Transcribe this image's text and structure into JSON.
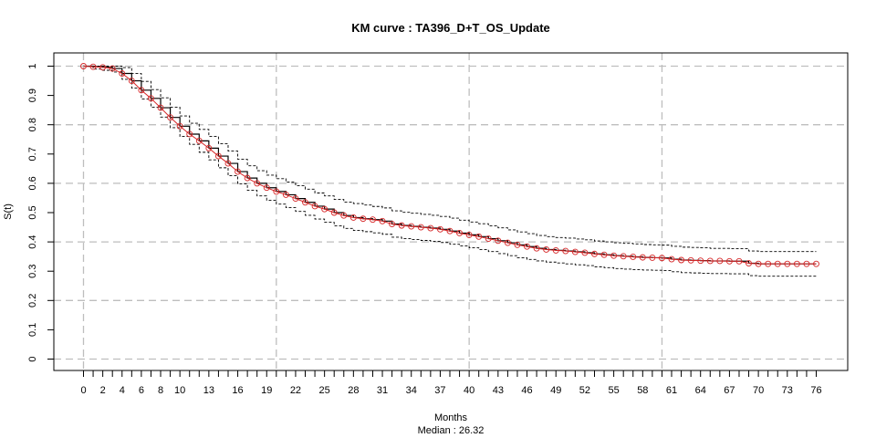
{
  "chart_data": {
    "type": "line",
    "title": "KM curve : TA396_D+T_OS_Update",
    "xlabel": "Months",
    "xlabel_sub": "Median : 26.32",
    "ylabel": "S(t)",
    "xlim": [
      0,
      79
    ],
    "ylim": [
      -0.04,
      1.04
    ],
    "x_ticks": [
      0,
      1,
      2,
      3,
      4,
      5,
      6,
      7,
      8,
      9,
      10,
      11,
      12,
      13,
      14,
      15,
      16,
      17,
      18,
      19,
      20,
      21,
      22,
      23,
      24,
      25,
      26,
      27,
      28,
      29,
      30,
      31,
      32,
      33,
      34,
      35,
      36,
      37,
      38,
      39,
      40,
      41,
      42,
      43,
      44,
      45,
      46,
      47,
      48,
      49,
      50,
      51,
      52,
      53,
      54,
      55,
      56,
      57,
      58,
      59,
      60,
      61,
      62,
      63,
      64,
      65,
      66,
      67,
      68,
      69,
      70,
      71,
      72,
      73,
      74,
      75,
      76
    ],
    "x_tick_labels": [
      "0",
      "2",
      "4",
      "6",
      "8",
      "10",
      "13",
      "16",
      "19",
      "22",
      "25",
      "28",
      "31",
      "34",
      "37",
      "40",
      "43",
      "46",
      "49",
      "52",
      "55",
      "58",
      "61",
      "64",
      "67",
      "70",
      "73",
      "76"
    ],
    "y_ticks": [
      0,
      0.1,
      0.2,
      0.3,
      0.4,
      0.5,
      0.6,
      0.7,
      0.8,
      0.9,
      1
    ],
    "y_tick_labels": [
      "0",
      "0.1",
      "0.2",
      "0.3",
      "0.4",
      "0.5",
      "0.6",
      "0.7",
      "0.8",
      "0.9",
      "1"
    ],
    "grid_x": [
      0,
      20,
      40,
      60
    ],
    "grid_y": [
      0,
      0.2,
      0.4,
      0.6,
      0.8,
      1
    ],
    "grid": true,
    "colors": {
      "estimate": "#000000",
      "ci": "#000000",
      "points": "#d62728",
      "grid": "#bebebe"
    },
    "series": [
      {
        "role": "estimate",
        "x": [
          0,
          1,
          2,
          3,
          4,
          5,
          6,
          7,
          8,
          9,
          10,
          11,
          12,
          13,
          14,
          15,
          16,
          17,
          18,
          19,
          20,
          21,
          22,
          23,
          24,
          25,
          26,
          27,
          28,
          29,
          30,
          31,
          32,
          33,
          34,
          35,
          36,
          37,
          38,
          39,
          40,
          41,
          42,
          43,
          44,
          45,
          46,
          47,
          48,
          49,
          50,
          51,
          52,
          53,
          54,
          55,
          56,
          57,
          58,
          59,
          60,
          61,
          62,
          63,
          64,
          65,
          66,
          67,
          68,
          69,
          70,
          71,
          72,
          73,
          74,
          75,
          76
        ],
        "y": [
          1.0,
          0.998,
          0.996,
          0.992,
          0.975,
          0.95,
          0.918,
          0.89,
          0.858,
          0.825,
          0.795,
          0.768,
          0.745,
          0.72,
          0.693,
          0.668,
          0.64,
          0.618,
          0.6,
          0.585,
          0.572,
          0.561,
          0.548,
          0.535,
          0.522,
          0.512,
          0.5,
          0.49,
          0.483,
          0.479,
          0.476,
          0.471,
          0.461,
          0.456,
          0.453,
          0.45,
          0.447,
          0.443,
          0.437,
          0.43,
          0.424,
          0.418,
          0.411,
          0.404,
          0.397,
          0.39,
          0.384,
          0.378,
          0.374,
          0.371,
          0.369,
          0.366,
          0.363,
          0.359,
          0.356,
          0.353,
          0.351,
          0.349,
          0.347,
          0.346,
          0.345,
          0.341,
          0.338,
          0.337,
          0.336,
          0.335,
          0.335,
          0.334,
          0.334,
          0.327,
          0.325,
          0.325,
          0.325,
          0.325,
          0.325,
          0.325,
          0.325
        ]
      },
      {
        "role": "upper-ci",
        "x": [
          0,
          1,
          2,
          3,
          4,
          5,
          6,
          7,
          8,
          9,
          10,
          11,
          12,
          13,
          14,
          15,
          16,
          17,
          18,
          19,
          20,
          21,
          22,
          23,
          24,
          25,
          26,
          27,
          28,
          29,
          30,
          31,
          32,
          33,
          34,
          35,
          36,
          37,
          38,
          39,
          40,
          41,
          42,
          43,
          44,
          45,
          46,
          47,
          48,
          49,
          50,
          51,
          52,
          53,
          54,
          55,
          56,
          57,
          58,
          59,
          60,
          61,
          62,
          63,
          64,
          65,
          66,
          67,
          68,
          69,
          70,
          71,
          72,
          73,
          74,
          75,
          76
        ],
        "y": [
          1.0,
          1.0,
          1.0,
          1.0,
          0.995,
          0.975,
          0.948,
          0.92,
          0.892,
          0.86,
          0.83,
          0.805,
          0.784,
          0.76,
          0.735,
          0.71,
          0.682,
          0.66,
          0.643,
          0.628,
          0.616,
          0.604,
          0.592,
          0.58,
          0.567,
          0.557,
          0.545,
          0.536,
          0.531,
          0.526,
          0.521,
          0.516,
          0.506,
          0.501,
          0.498,
          0.494,
          0.491,
          0.487,
          0.481,
          0.474,
          0.468,
          0.462,
          0.455,
          0.448,
          0.441,
          0.434,
          0.428,
          0.422,
          0.418,
          0.415,
          0.413,
          0.41,
          0.407,
          0.403,
          0.4,
          0.397,
          0.395,
          0.393,
          0.391,
          0.39,
          0.389,
          0.385,
          0.382,
          0.381,
          0.38,
          0.378,
          0.378,
          0.377,
          0.377,
          0.369,
          0.367,
          0.367,
          0.367,
          0.367,
          0.367,
          0.367,
          0.367
        ]
      },
      {
        "role": "lower-ci",
        "x": [
          0,
          1,
          2,
          3,
          4,
          5,
          6,
          7,
          8,
          9,
          10,
          11,
          12,
          13,
          14,
          15,
          16,
          17,
          18,
          19,
          20,
          21,
          22,
          23,
          24,
          25,
          26,
          27,
          28,
          29,
          30,
          31,
          32,
          33,
          34,
          35,
          36,
          37,
          38,
          39,
          40,
          41,
          42,
          43,
          44,
          45,
          46,
          47,
          48,
          49,
          50,
          51,
          52,
          53,
          54,
          55,
          56,
          57,
          58,
          59,
          60,
          61,
          62,
          63,
          64,
          65,
          66,
          67,
          68,
          69,
          70,
          71,
          72,
          73,
          74,
          75,
          76
        ],
        "y": [
          1.0,
          0.99,
          0.986,
          0.98,
          0.955,
          0.925,
          0.888,
          0.86,
          0.826,
          0.79,
          0.76,
          0.733,
          0.706,
          0.68,
          0.653,
          0.626,
          0.598,
          0.576,
          0.557,
          0.542,
          0.529,
          0.517,
          0.504,
          0.491,
          0.478,
          0.467,
          0.455,
          0.446,
          0.439,
          0.435,
          0.431,
          0.426,
          0.416,
          0.411,
          0.408,
          0.405,
          0.402,
          0.398,
          0.392,
          0.386,
          0.38,
          0.374,
          0.367,
          0.36,
          0.353,
          0.346,
          0.34,
          0.335,
          0.331,
          0.328,
          0.325,
          0.322,
          0.319,
          0.315,
          0.312,
          0.309,
          0.307,
          0.305,
          0.304,
          0.303,
          0.302,
          0.298,
          0.295,
          0.294,
          0.293,
          0.292,
          0.292,
          0.291,
          0.291,
          0.285,
          0.283,
          0.283,
          0.283,
          0.283,
          0.283,
          0.283,
          0.283
        ]
      }
    ],
    "points": {
      "x": [
        0,
        1,
        2,
        3,
        4,
        5,
        6,
        7,
        8,
        9,
        10,
        11,
        12,
        13,
        14,
        15,
        16,
        17,
        18,
        19,
        20,
        21,
        22,
        23,
        24,
        25,
        26,
        27,
        28,
        29,
        30,
        31,
        32,
        33,
        34,
        35,
        36,
        37,
        38,
        39,
        40,
        41,
        42,
        43,
        44,
        45,
        46,
        47,
        48,
        49,
        50,
        51,
        52,
        53,
        54,
        55,
        56,
        57,
        58,
        59,
        60,
        61,
        62,
        63,
        64,
        65,
        66,
        67,
        68,
        69,
        70,
        71,
        72,
        73,
        74,
        75,
        76
      ],
      "y": [
        1.0,
        0.998,
        0.996,
        0.992,
        0.975,
        0.95,
        0.918,
        0.89,
        0.858,
        0.825,
        0.795,
        0.768,
        0.745,
        0.72,
        0.693,
        0.668,
        0.64,
        0.618,
        0.6,
        0.585,
        0.572,
        0.561,
        0.548,
        0.535,
        0.522,
        0.512,
        0.5,
        0.49,
        0.483,
        0.479,
        0.476,
        0.471,
        0.461,
        0.456,
        0.453,
        0.45,
        0.447,
        0.443,
        0.437,
        0.43,
        0.424,
        0.418,
        0.411,
        0.404,
        0.397,
        0.39,
        0.384,
        0.378,
        0.374,
        0.371,
        0.369,
        0.366,
        0.363,
        0.359,
        0.356,
        0.353,
        0.351,
        0.349,
        0.347,
        0.346,
        0.345,
        0.341,
        0.338,
        0.337,
        0.336,
        0.335,
        0.335,
        0.334,
        0.334,
        0.327,
        0.325,
        0.325,
        0.325,
        0.325,
        0.325,
        0.325,
        0.325
      ]
    }
  }
}
